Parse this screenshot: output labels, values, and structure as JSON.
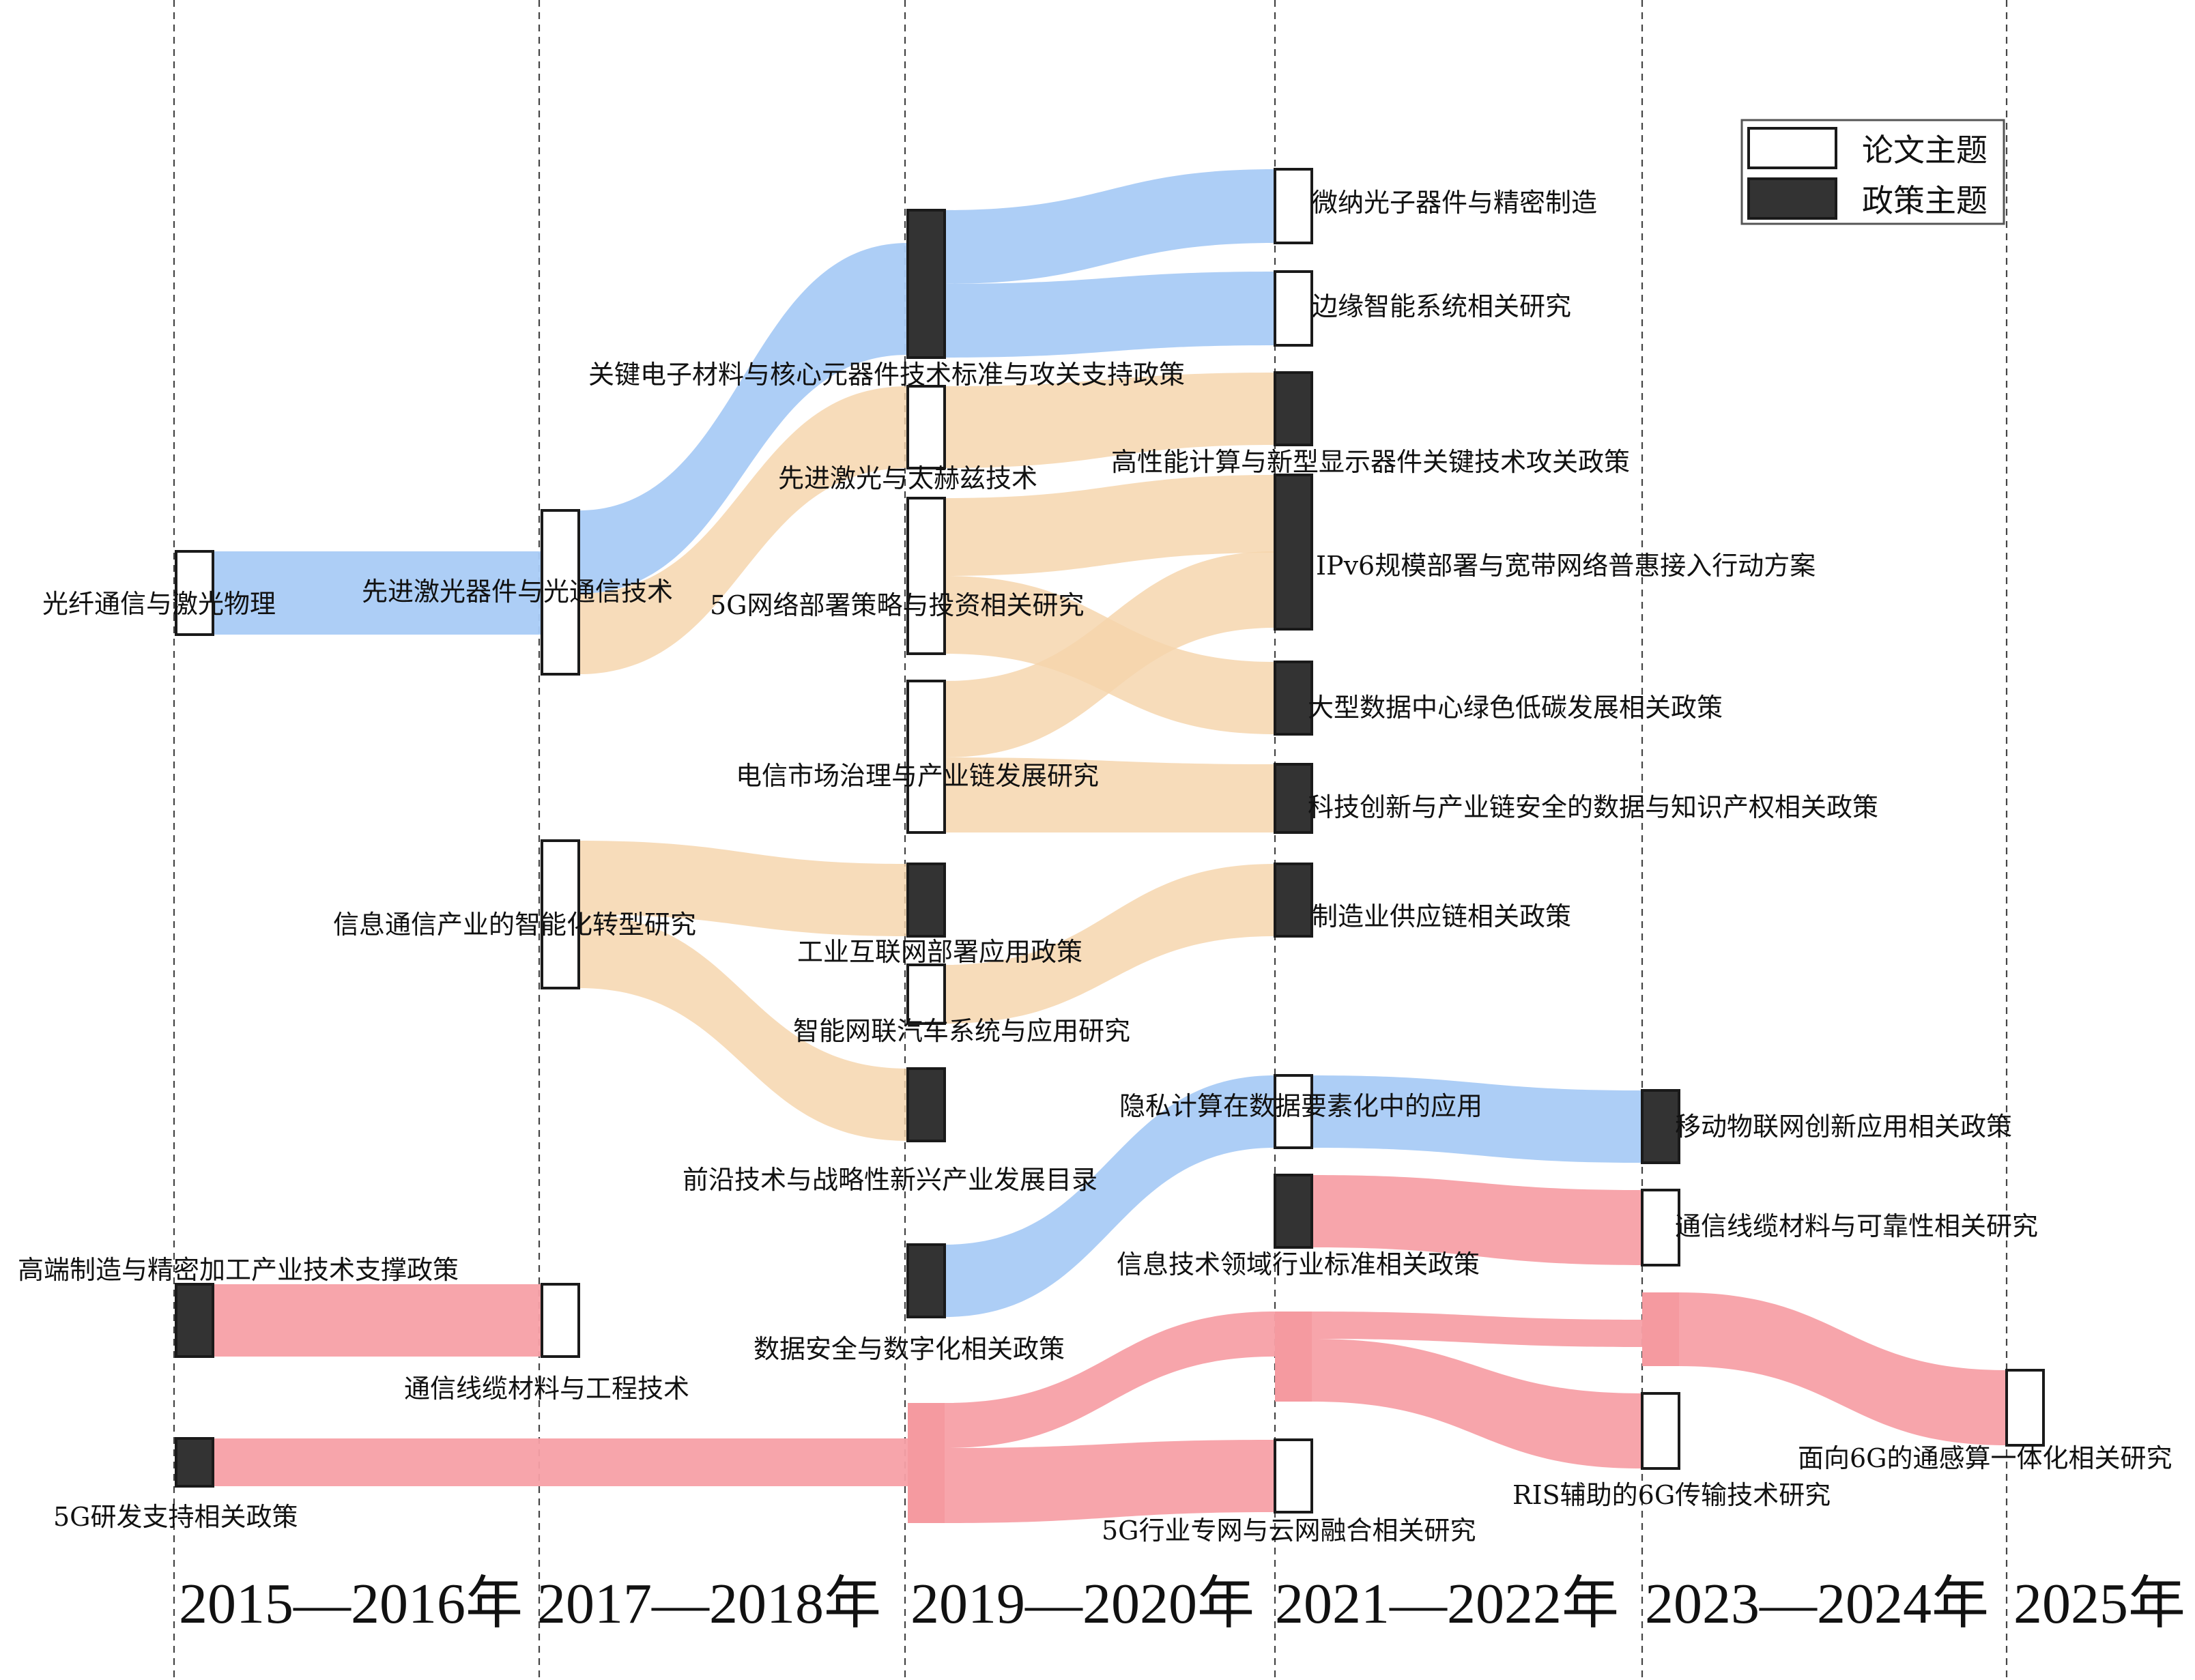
{
  "colors": {
    "paper_node": "#ffffff",
    "policy_node": "#333333",
    "node_stroke": "#1a1a1a",
    "flow_blue": "#a9cbf5",
    "flow_orange": "#f5d4ab",
    "flow_pink": "#f7a0a6",
    "flow_pink_mid": "#f59aa0",
    "divider": "#444444"
  },
  "legend": {
    "paper_label": "论文主题",
    "policy_label": "政策主题"
  },
  "periods": [
    {
      "id": "p1",
      "label": "2015—2016年"
    },
    {
      "id": "p2",
      "label": "2017—2018年"
    },
    {
      "id": "p3",
      "label": "2019—2020年"
    },
    {
      "id": "p4",
      "label": "2021—2022年"
    },
    {
      "id": "p5",
      "label": "2023—2024年"
    },
    {
      "id": "p6",
      "label": "2025年"
    }
  ],
  "nodes": [
    {
      "id": "n1",
      "label": "光纤通信与激光物理",
      "type": "paper",
      "period": "p1"
    },
    {
      "id": "n2",
      "label": "高端制造与精密加工产业技术支撑政策",
      "type": "policy",
      "period": "p1"
    },
    {
      "id": "n3",
      "label": "5G研发支持相关政策",
      "type": "policy",
      "period": "p1"
    },
    {
      "id": "n4",
      "label": "先进激光器件与光通信技术",
      "type": "paper",
      "period": "p2"
    },
    {
      "id": "n5",
      "label": "信息通信产业的智能化转型研究",
      "type": "paper",
      "period": "p2"
    },
    {
      "id": "n6",
      "label": "通信线缆材料与工程技术",
      "type": "paper",
      "period": "p2"
    },
    {
      "id": "n7",
      "label": "关键电子材料与核心元器件技术标准与攻关支持政策",
      "type": "policy",
      "period": "p3"
    },
    {
      "id": "n8",
      "label": "先进激光与太赫兹技术",
      "type": "paper",
      "period": "p3"
    },
    {
      "id": "n9",
      "label": "5G网络部署策略与投资相关研究",
      "type": "paper",
      "period": "p3"
    },
    {
      "id": "n10",
      "label": "电信市场治理与产业链发展研究",
      "type": "paper",
      "period": "p3"
    },
    {
      "id": "n11",
      "label": "工业互联网部署应用政策",
      "type": "policy",
      "period": "p3"
    },
    {
      "id": "n12",
      "label": "智能网联汽车系统与应用研究",
      "type": "paper",
      "period": "p3"
    },
    {
      "id": "n13",
      "label": "前沿技术与战略性新兴产业发展目录",
      "type": "policy",
      "period": "p3"
    },
    {
      "id": "n14",
      "label": "数据安全与数字化相关政策",
      "type": "policy",
      "period": "p3"
    },
    {
      "id": "n15",
      "label": "微纳光子器件与精密制造",
      "type": "paper",
      "period": "p4"
    },
    {
      "id": "n16",
      "label": "边缘智能系统相关研究",
      "type": "paper",
      "period": "p4"
    },
    {
      "id": "n17",
      "label": "高性能计算与新型显示器件关键技术攻关政策",
      "type": "policy",
      "period": "p4"
    },
    {
      "id": "n18",
      "label": "IPv6规模部署与宽带网络普惠接入行动方案",
      "type": "policy",
      "period": "p4"
    },
    {
      "id": "n19",
      "label": "大型数据中心绿色低碳发展相关政策",
      "type": "policy",
      "period": "p4"
    },
    {
      "id": "n20",
      "label": "科技创新与产业链安全的数据与知识产权相关政策",
      "type": "policy",
      "period": "p4"
    },
    {
      "id": "n21",
      "label": "制造业供应链相关政策",
      "type": "policy",
      "period": "p4"
    },
    {
      "id": "n22",
      "label": "隐私计算在数据要素化中的应用",
      "type": "paper",
      "period": "p4"
    },
    {
      "id": "n23",
      "label": "信息技术领域行业标准相关政策",
      "type": "policy",
      "period": "p4"
    },
    {
      "id": "n24",
      "label": "5G行业专网与云网融合相关研究",
      "type": "paper",
      "period": "p4"
    },
    {
      "id": "n25",
      "label": "移动物联网创新应用相关政策",
      "type": "policy",
      "period": "p5"
    },
    {
      "id": "n26",
      "label": "通信线缆材料与可靠性相关研究",
      "type": "paper",
      "period": "p5"
    },
    {
      "id": "n27",
      "label": "RIS辅助的6G传输技术研究",
      "type": "paper",
      "period": "p5"
    },
    {
      "id": "n28",
      "label": "面向6G的通感算一体化相关研究",
      "type": "paper",
      "period": "p6"
    }
  ],
  "flows": [
    {
      "from": "n1",
      "to": "n4",
      "color": "blue"
    },
    {
      "from": "n4",
      "to": "n7",
      "color": "blue"
    },
    {
      "from": "n4",
      "to": "n8",
      "color": "orange"
    },
    {
      "from": "n7",
      "to": "n15",
      "color": "blue"
    },
    {
      "from": "n7",
      "to": "n16",
      "color": "blue"
    },
    {
      "from": "n8",
      "to": "n17",
      "color": "orange"
    },
    {
      "from": "n9",
      "to": "n18",
      "color": "orange"
    },
    {
      "from": "n9",
      "to": "n19",
      "color": "orange"
    },
    {
      "from": "n10",
      "to": "n18",
      "color": "orange"
    },
    {
      "from": "n10",
      "to": "n20",
      "color": "orange"
    },
    {
      "from": "n5",
      "to": "n11",
      "color": "orange"
    },
    {
      "from": "n5",
      "to": "n13",
      "color": "orange"
    },
    {
      "from": "n12",
      "to": "n21",
      "color": "orange"
    },
    {
      "from": "n14",
      "to": "n22",
      "color": "blue"
    },
    {
      "from": "n22",
      "to": "n25",
      "color": "blue"
    },
    {
      "from": "n2",
      "to": "n6",
      "color": "pink"
    },
    {
      "from": "n3",
      "to": "n3b",
      "color": "pink"
    },
    {
      "from": "n23",
      "to": "n26",
      "color": "pink"
    },
    {
      "from": "n3b",
      "to": "n24",
      "color": "pink"
    },
    {
      "from": "n3b",
      "to": "n4b",
      "color": "pink"
    },
    {
      "from": "n4b",
      "to": "n5b",
      "color": "pink"
    },
    {
      "from": "n4b",
      "to": "n27",
      "color": "pink"
    },
    {
      "from": "n5b",
      "to": "n28",
      "color": "pink"
    }
  ]
}
